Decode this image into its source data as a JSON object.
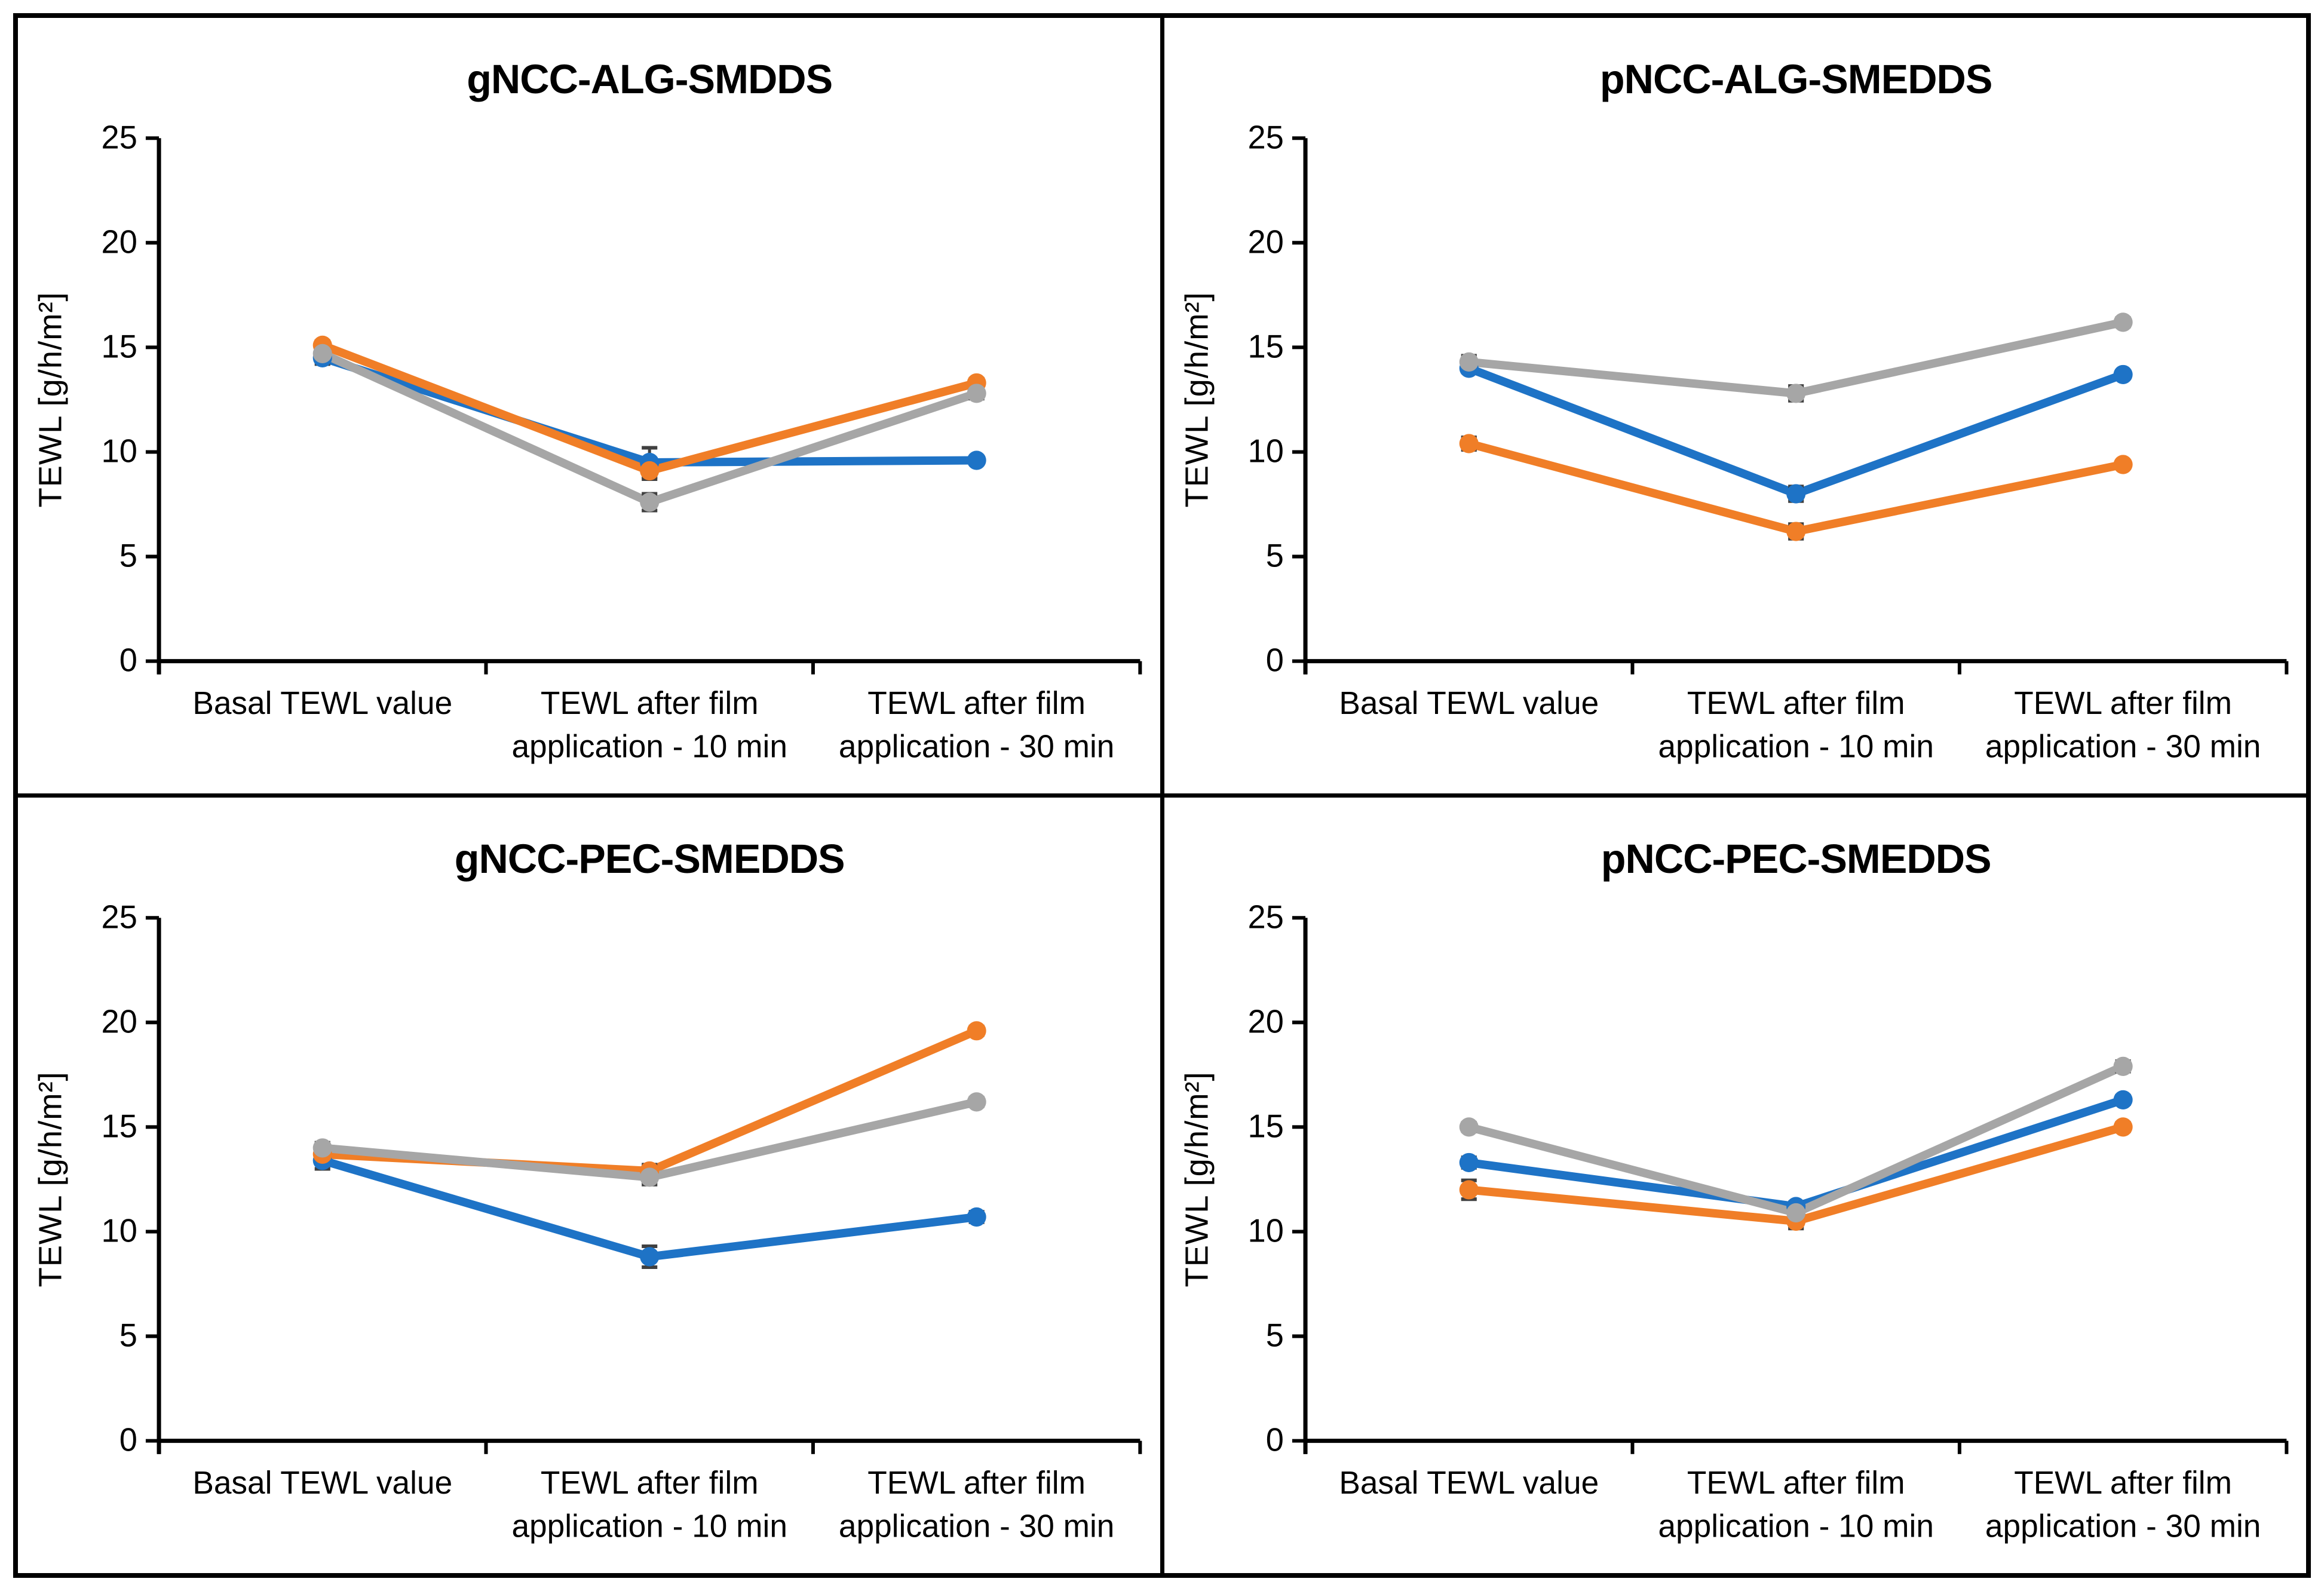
{
  "figure": {
    "background": "#ffffff",
    "border_color": "#000000",
    "layout": "2x2-grid"
  },
  "palette": {
    "blue": "#1E73C6",
    "orange": "#F07E27",
    "gray": "#A6A6A6",
    "error_bar": "#404040",
    "axis": "#000000"
  },
  "shared_axis": {
    "y_label": "TEWL [g/h/m²]",
    "y_ticks": [
      0,
      5,
      10,
      15,
      20,
      25
    ],
    "y_min": 0,
    "y_max": 25,
    "category_lines": [
      [
        "Basal TEWL value"
      ],
      [
        "TEWL after film",
        "application - 10 min"
      ],
      [
        "TEWL after film",
        "application - 30 min"
      ]
    ]
  },
  "chart_data": [
    {
      "type": "line",
      "title": "gNCC-ALG-SMDDS",
      "ylabel": "TEWL [g/h/m²]",
      "ylim": [
        0,
        25
      ],
      "y_ticks": [
        0,
        5,
        10,
        15,
        20,
        25
      ],
      "grid": false,
      "legend": "none",
      "categories": [
        "Basal TEWL value",
        "TEWL after film application - 10 min",
        "TEWL after film application - 30 min"
      ],
      "category_lines": [
        [
          "Basal TEWL value"
        ],
        [
          "TEWL after film",
          "application - 10 min"
        ],
        [
          "TEWL after film",
          "application - 30 min"
        ]
      ],
      "series": [
        {
          "name": "blue",
          "color": "#1E73C6",
          "values": [
            14.5,
            9.5,
            9.6
          ],
          "errors": [
            0.3,
            0.7,
            0.15
          ]
        },
        {
          "name": "orange",
          "color": "#F07E27",
          "values": [
            15.1,
            9.1,
            13.3
          ],
          "errors": [
            0.2,
            0.4,
            0.2
          ]
        },
        {
          "name": "gray",
          "color": "#A6A6A6",
          "values": [
            14.7,
            7.6,
            12.8
          ],
          "errors": [
            0.3,
            0.4,
            0.25
          ]
        }
      ]
    },
    {
      "type": "line",
      "title": "pNCC-ALG-SMEDDS",
      "ylabel": "TEWL [g/h/m²]",
      "ylim": [
        0,
        25
      ],
      "y_ticks": [
        0,
        5,
        10,
        15,
        20,
        25
      ],
      "grid": false,
      "legend": "none",
      "categories": [
        "Basal TEWL value",
        "TEWL after film application - 10 min",
        "TEWL after film application - 30 min"
      ],
      "category_lines": [
        [
          "Basal TEWL value"
        ],
        [
          "TEWL after film",
          "application - 10 min"
        ],
        [
          "TEWL after film",
          "application - 30 min"
        ]
      ],
      "series": [
        {
          "name": "blue",
          "color": "#1E73C6",
          "values": [
            14.0,
            8.0,
            13.7
          ],
          "errors": [
            0.2,
            0.35,
            0.15
          ]
        },
        {
          "name": "orange",
          "color": "#F07E27",
          "values": [
            10.4,
            6.2,
            9.4
          ],
          "errors": [
            0.3,
            0.35,
            0.15
          ]
        },
        {
          "name": "gray",
          "color": "#A6A6A6",
          "values": [
            14.3,
            12.8,
            16.2
          ],
          "errors": [
            0.3,
            0.35,
            0.2
          ]
        }
      ]
    },
    {
      "type": "line",
      "title": "gNCC-PEC-SMEDDS",
      "ylabel": "TEWL [g/h/m²]",
      "ylim": [
        0,
        25
      ],
      "y_ticks": [
        0,
        5,
        10,
        15,
        20,
        25
      ],
      "grid": false,
      "legend": "none",
      "categories": [
        "Basal TEWL value",
        "TEWL after film application - 10 min",
        "TEWL after film application - 30 min"
      ],
      "category_lines": [
        [
          "Basal TEWL value"
        ],
        [
          "TEWL after film",
          "application - 10 min"
        ],
        [
          "TEWL after film",
          "application - 30 min"
        ]
      ],
      "series": [
        {
          "name": "blue",
          "color": "#1E73C6",
          "values": [
            13.4,
            8.8,
            10.7
          ],
          "errors": [
            0.4,
            0.5,
            0.25
          ]
        },
        {
          "name": "orange",
          "color": "#F07E27",
          "values": [
            13.7,
            12.9,
            19.6
          ],
          "errors": [
            0.2,
            0.3,
            0.2
          ]
        },
        {
          "name": "gray",
          "color": "#A6A6A6",
          "values": [
            14.0,
            12.6,
            16.2
          ],
          "errors": [
            0.25,
            0.35,
            0.2
          ]
        }
      ]
    },
    {
      "type": "line",
      "title": "pNCC-PEC-SMEDDS",
      "ylabel": "TEWL [g/h/m²]",
      "ylim": [
        0,
        25
      ],
      "y_ticks": [
        0,
        5,
        10,
        15,
        20,
        25
      ],
      "grid": false,
      "legend": "none",
      "categories": [
        "Basal TEWL value",
        "TEWL after film application - 10 min",
        "TEWL after film application - 30 min"
      ],
      "category_lines": [
        [
          "Basal TEWL value"
        ],
        [
          "TEWL after film",
          "application - 10 min"
        ],
        [
          "TEWL after film",
          "application - 30 min"
        ]
      ],
      "series": [
        {
          "name": "blue",
          "color": "#1E73C6",
          "values": [
            13.3,
            11.2,
            16.3
          ],
          "errors": [
            0.25,
            0.2,
            0.2
          ]
        },
        {
          "name": "orange",
          "color": "#F07E27",
          "values": [
            12.0,
            10.5,
            15.0
          ],
          "errors": [
            0.45,
            0.35,
            0.2
          ]
        },
        {
          "name": "gray",
          "color": "#A6A6A6",
          "values": [
            15.0,
            10.9,
            17.9
          ],
          "errors": [
            0.2,
            0.3,
            0.25
          ]
        }
      ]
    }
  ]
}
